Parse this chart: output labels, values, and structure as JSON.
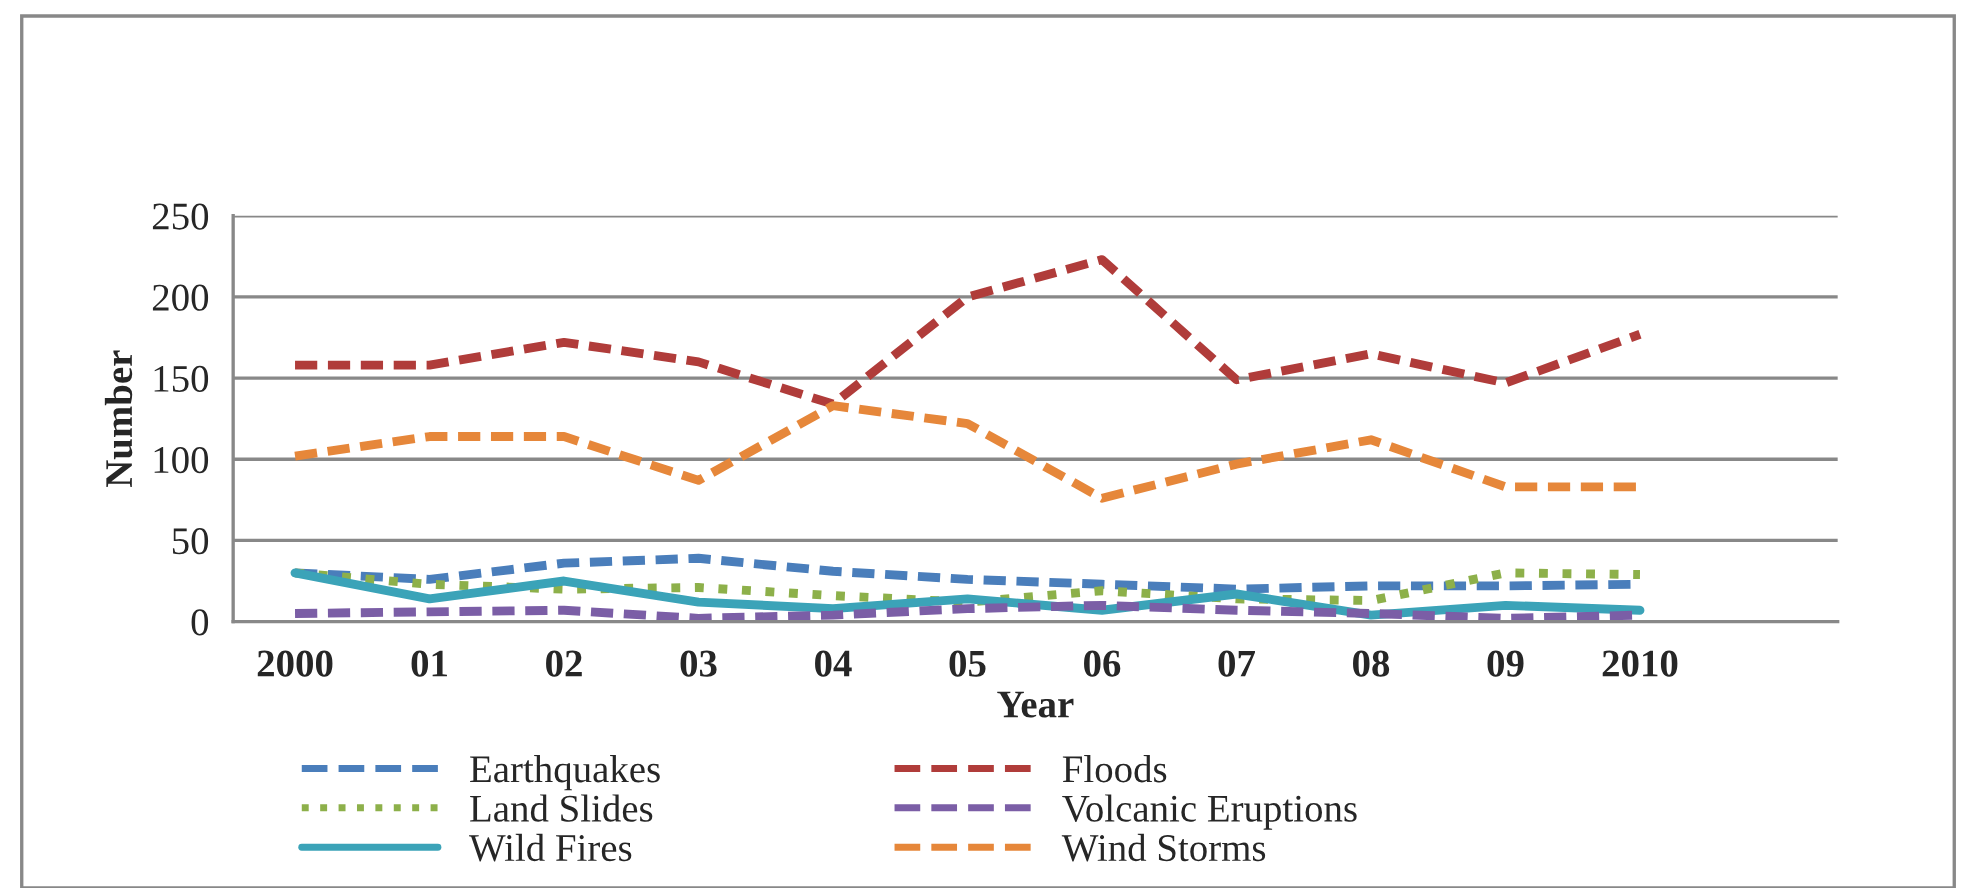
{
  "chart_data": {
    "type": "line",
    "xlabel": "Year",
    "ylabel": "Number",
    "x": [
      2000,
      2001,
      2002,
      2003,
      2004,
      2005,
      2006,
      2007,
      2008,
      2009,
      2010
    ],
    "xlim": [
      1999.54,
      2011.47
    ],
    "xticks": [
      2000,
      {
        "value": 2001,
        "label": "01"
      },
      {
        "value": 2002,
        "label": "02"
      },
      {
        "value": 2003,
        "label": "03"
      },
      {
        "value": 2004,
        "label": "04"
      },
      {
        "value": 2005,
        "label": "05"
      },
      {
        "value": 2006,
        "label": "06"
      },
      {
        "value": 2007,
        "label": "07"
      },
      {
        "value": 2008,
        "label": "08"
      },
      {
        "value": 2009,
        "label": "09"
      },
      2010
    ],
    "ylim": [
      0,
      250
    ],
    "yticks": [
      0,
      50,
      100,
      150,
      200,
      250
    ],
    "grid": "y",
    "legend": "bottom",
    "marker": "none",
    "series": [
      {
        "name": "Earthquakes",
        "color": "#4a7ebb",
        "line_style": "dashed",
        "values": [
          30,
          26,
          36,
          39,
          31,
          26,
          23,
          20,
          22,
          22,
          23
        ]
      },
      {
        "name": "Land Slides",
        "color": "#8db04a",
        "line_style": "dotted",
        "values": [
          30,
          23,
          20,
          21,
          16,
          12,
          19,
          14,
          13,
          30,
          29
        ]
      },
      {
        "name": "Wild Fires",
        "color": "#3ba3b8",
        "line_style": "solid",
        "values": [
          30,
          14,
          25,
          12,
          8,
          14,
          7,
          17,
          4,
          10,
          7
        ]
      },
      {
        "name": "Floods",
        "color": "#b03c3a",
        "line_style": "dashed",
        "values": [
          158,
          158,
          172,
          160,
          134,
          200,
          223,
          149,
          165,
          147,
          177
        ]
      },
      {
        "name": "Volcanic Eruptions",
        "color": "#7b5ea6",
        "line_style": "dashed",
        "values": [
          5,
          6,
          7,
          2,
          4,
          8,
          10,
          7,
          5,
          2,
          4
        ]
      },
      {
        "name": "Wind Storms",
        "color": "#e6873a",
        "line_style": "dashed",
        "values": [
          102,
          114,
          114,
          87,
          133,
          122,
          76,
          97,
          112,
          83,
          83
        ]
      }
    ]
  }
}
